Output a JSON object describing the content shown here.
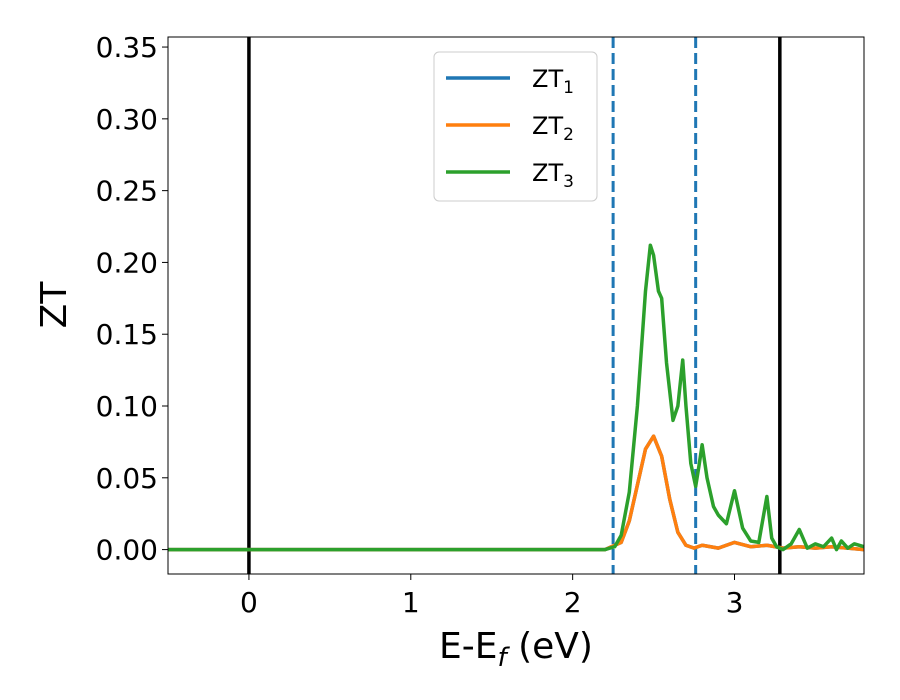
{
  "chart_data": {
    "type": "line",
    "xlabel": "E-E",
    "xlabel_sub": "f",
    "xlabel_unit": " (eV)",
    "ylabel": "ZT",
    "xlim": [
      -0.5,
      3.8
    ],
    "ylim": [
      -0.017,
      0.357
    ],
    "x_ticks": [
      0,
      1,
      2,
      3
    ],
    "y_ticks": [
      0.0,
      0.05,
      0.1,
      0.15,
      0.2,
      0.25,
      0.3,
      0.35
    ],
    "x_tick_labels": [
      "0",
      "1",
      "2",
      "3"
    ],
    "y_tick_labels": [
      "0.00",
      "0.05",
      "0.10",
      "0.15",
      "0.20",
      "0.25",
      "0.30",
      "0.35"
    ],
    "grid": false,
    "legend_position": "upper center",
    "vertical_lines": [
      {
        "x": 0.0,
        "style": "solid",
        "color": "#000000"
      },
      {
        "x": 3.28,
        "style": "solid",
        "color": "#000000"
      },
      {
        "x": 2.25,
        "style": "dashed",
        "color": "#1f77b4"
      },
      {
        "x": 2.76,
        "style": "dashed",
        "color": "#1f77b4"
      }
    ],
    "series": [
      {
        "name": "ZT",
        "subscript": "1",
        "color": "#1f77b4",
        "x": [
          -0.5,
          2.2,
          2.3,
          2.35,
          2.4,
          2.45,
          2.5,
          2.55,
          2.6,
          2.65,
          2.7,
          2.75,
          2.8,
          2.9,
          3.0,
          3.1,
          3.2,
          3.3,
          3.4,
          3.5,
          3.6,
          3.7,
          3.8
        ],
        "y": [
          0.0,
          0.0,
          0.005,
          0.02,
          0.045,
          0.07,
          0.079,
          0.065,
          0.035,
          0.012,
          0.003,
          0.001,
          0.003,
          0.001,
          0.005,
          0.002,
          0.003,
          0.001,
          0.002,
          0.001,
          0.002,
          0.001,
          0.0
        ]
      },
      {
        "name": "ZT",
        "subscript": "2",
        "color": "#ff7f0e",
        "x": [
          -0.5,
          2.2,
          2.3,
          2.35,
          2.4,
          2.45,
          2.5,
          2.55,
          2.6,
          2.65,
          2.7,
          2.75,
          2.8,
          2.9,
          3.0,
          3.1,
          3.2,
          3.3,
          3.4,
          3.5,
          3.6,
          3.7,
          3.8
        ],
        "y": [
          0.0,
          0.0,
          0.005,
          0.02,
          0.045,
          0.07,
          0.079,
          0.065,
          0.035,
          0.012,
          0.003,
          0.001,
          0.003,
          0.001,
          0.005,
          0.002,
          0.003,
          0.001,
          0.002,
          0.001,
          0.002,
          0.001,
          0.0
        ]
      },
      {
        "name": "ZT",
        "subscript": "3",
        "color": "#2ca02c",
        "x": [
          -0.5,
          2.2,
          2.26,
          2.3,
          2.35,
          2.4,
          2.45,
          2.48,
          2.5,
          2.53,
          2.55,
          2.58,
          2.62,
          2.65,
          2.68,
          2.7,
          2.73,
          2.76,
          2.78,
          2.8,
          2.83,
          2.87,
          2.9,
          2.95,
          3.0,
          3.05,
          3.1,
          3.15,
          3.2,
          3.23,
          3.26,
          3.3,
          3.35,
          3.4,
          3.45,
          3.5,
          3.55,
          3.6,
          3.63,
          3.66,
          3.7,
          3.74,
          3.8
        ],
        "y": [
          0.0,
          0.0,
          0.002,
          0.01,
          0.04,
          0.1,
          0.18,
          0.212,
          0.205,
          0.18,
          0.175,
          0.13,
          0.09,
          0.1,
          0.132,
          0.1,
          0.06,
          0.044,
          0.058,
          0.073,
          0.05,
          0.03,
          0.024,
          0.018,
          0.041,
          0.015,
          0.006,
          0.005,
          0.037,
          0.008,
          0.002,
          0.0,
          0.004,
          0.014,
          0.001,
          0.004,
          0.002,
          0.008,
          0.0,
          0.006,
          0.001,
          0.004,
          0.002
        ]
      }
    ]
  }
}
